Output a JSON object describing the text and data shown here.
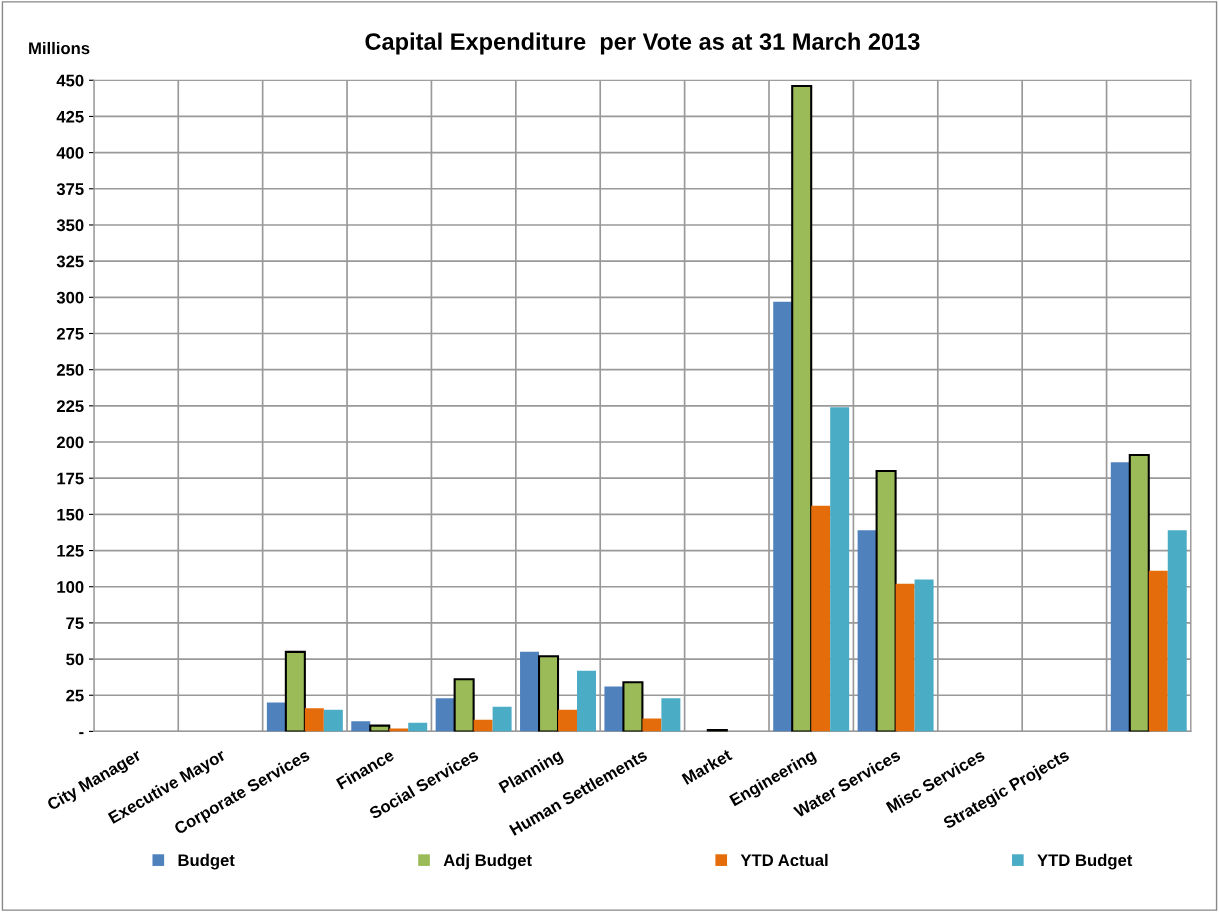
{
  "chart_data": {
    "type": "bar",
    "title": "Capital Expenditure  per Vote as at 31 March 2013",
    "ylabel": "Millions",
    "categories": [
      "City Manager",
      "Executive Mayor",
      "Corporate Services",
      "Finance",
      "Social Services",
      "Planning",
      "Human Settlements",
      "Market",
      "Engineering",
      "Water Services",
      "Misc Services",
      "Strategic Projects",
      null
    ],
    "series": [
      {
        "name": "Budget",
        "color": "#4f81bd",
        "values": [
          0,
          0,
          20,
          7,
          23,
          55,
          31,
          0,
          297,
          139,
          0,
          0,
          186
        ]
      },
      {
        "name": "Adj Budget",
        "color": "#9bbb59",
        "values": [
          0,
          0,
          55,
          4,
          36,
          52,
          34,
          1,
          446,
          180,
          0,
          0,
          191
        ]
      },
      {
        "name": "YTD Actual",
        "color": "#e46c0a",
        "values": [
          0,
          0,
          16,
          2,
          8,
          15,
          9,
          0,
          156,
          102,
          0,
          0,
          111
        ]
      },
      {
        "name": "YTD Budget",
        "color": "#4bacc6",
        "values": [
          0,
          0,
          15,
          6,
          17,
          42,
          23,
          0,
          224,
          105,
          0,
          0,
          139
        ]
      }
    ],
    "ylim": [
      0,
      450
    ],
    "yticks": [
      {
        "value": 0,
        "label": "-"
      },
      25,
      50,
      75,
      100,
      125,
      150,
      175,
      200,
      225,
      250,
      275,
      300,
      325,
      350,
      375,
      400,
      425,
      450
    ],
    "grid": true,
    "legend": "bottom"
  }
}
